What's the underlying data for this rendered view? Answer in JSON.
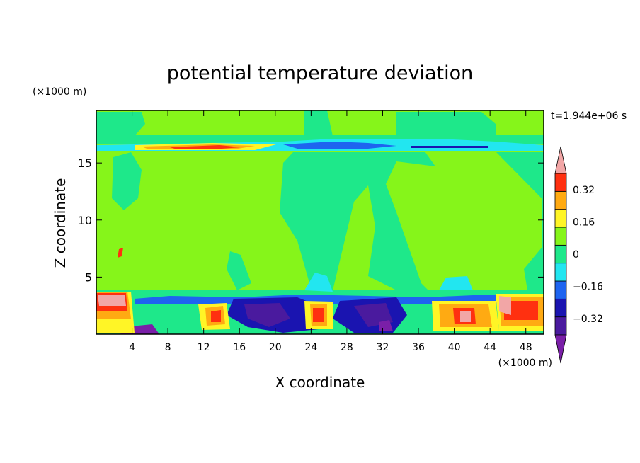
{
  "chart_data": {
    "type": "heatmap",
    "title": "potential temperature deviation",
    "xlabel": "X coordinate",
    "ylabel": "Z coordinate",
    "x_unit": "(×1000 m)",
    "y_unit": "(×1000 m)",
    "time_label": "t=1.944e+06 s",
    "xlim": [
      0,
      50
    ],
    "ylim": [
      0,
      19.6
    ],
    "x_ticks": [
      4,
      8,
      12,
      16,
      20,
      24,
      28,
      32,
      36,
      40,
      44,
      48
    ],
    "y_ticks": [
      5,
      10,
      15
    ],
    "colorbar": {
      "levels": [
        -0.4,
        -0.32,
        -0.24,
        -0.16,
        -0.08,
        0,
        0.08,
        0.16,
        0.24,
        0.32,
        0.4
      ],
      "labeled_levels": [
        0.32,
        0.16,
        0,
        -0.16,
        -0.32
      ],
      "tick_labels": [
        "0.32",
        "0.16",
        "0",
        "−0.16",
        "−0.32"
      ],
      "colors": [
        "#7a1fa8",
        "#4a1a9e",
        "#1a14b0",
        "#1e64f0",
        "#22e6f0",
        "#1ee88a",
        "#86f51a",
        "#fff526",
        "#ffaa12",
        "#ff3010",
        "#f2a6a6"
      ]
    }
  }
}
